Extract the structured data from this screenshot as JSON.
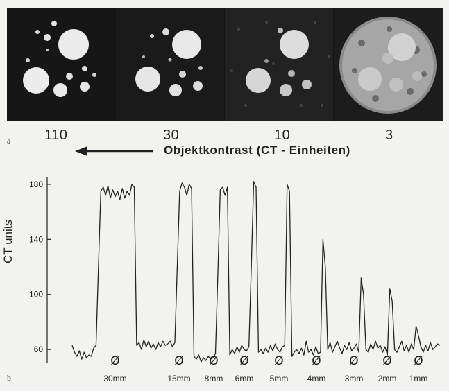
{
  "figure": {
    "panel_a_label": "a",
    "panel_b_label": "b",
    "contrast_values": [
      "110",
      "30",
      "10",
      "3"
    ],
    "contrast_axis_title": "Objektkontrast (CT - Einheiten)",
    "arrow_icon": "left-arrow-icon"
  },
  "chart_data": {
    "type": "line",
    "ylabel": "CT units",
    "ylim": [
      50,
      185
    ],
    "yticks": [
      60,
      100,
      140,
      180
    ],
    "diameter_symbol": "Ø",
    "object_sizes": [
      "30mm",
      "15mm",
      "8mm",
      "6mm",
      "5mm",
      "4mm",
      "3mm",
      "2mm",
      "1mm"
    ],
    "peak_values": [
      178,
      180,
      178,
      182,
      180,
      140,
      112,
      104,
      77
    ],
    "series": [
      {
        "values": [
          63,
          58,
          55,
          59,
          53,
          58,
          54,
          56,
          55,
          61,
          63,
          120,
          175,
          178,
          172,
          179,
          170,
          176,
          171,
          175,
          169,
          177,
          170,
          175,
          172,
          180,
          178,
          63,
          65,
          60,
          67,
          62,
          66,
          61,
          64,
          60,
          65,
          62,
          66,
          63,
          64,
          66,
          62,
          65,
          120,
          175,
          181,
          178,
          172,
          180,
          177,
          55,
          53,
          56,
          51,
          54,
          52,
          55,
          53,
          54,
          57,
          115,
          176,
          178,
          172,
          178,
          56,
          60,
          57,
          62,
          58,
          63,
          60,
          59,
          62,
          120,
          182,
          178,
          58,
          60,
          57,
          61,
          58,
          63,
          59,
          64,
          60,
          58,
          62,
          63,
          180,
          175,
          55,
          58,
          60,
          57,
          61,
          56,
          66,
          58,
          60,
          56,
          62,
          57,
          58,
          140,
          120,
          60,
          65,
          58,
          62,
          66,
          61,
          57,
          63,
          60,
          65,
          59,
          61,
          64,
          58,
          112,
          100,
          60,
          58,
          64,
          60,
          66,
          61,
          63,
          58,
          62,
          56,
          104,
          95,
          60,
          58,
          62,
          66,
          59,
          63,
          58,
          64,
          60,
          77,
          70,
          62,
          58,
          63,
          59,
          65,
          60,
          62,
          64,
          63
        ]
      }
    ]
  }
}
